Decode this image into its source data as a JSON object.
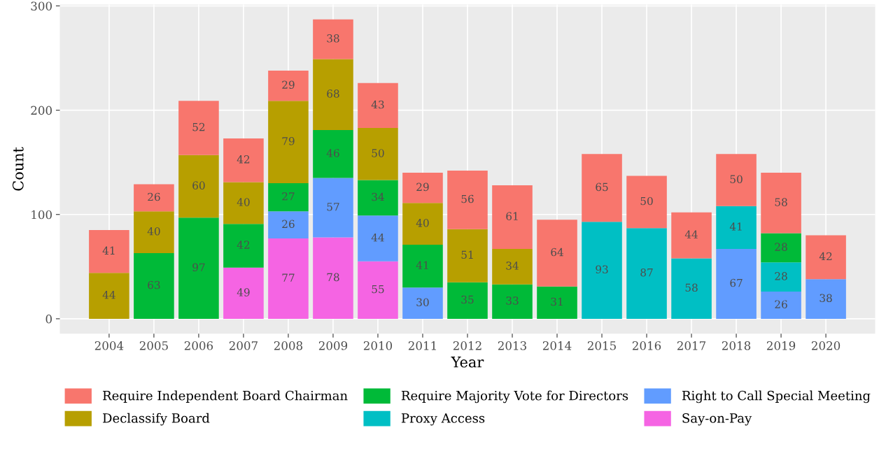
{
  "chart_data": {
    "type": "bar",
    "stacked": true,
    "xlabel": "Year",
    "ylabel": "Count",
    "categories": [
      "2004",
      "2005",
      "2006",
      "2007",
      "2008",
      "2009",
      "2010",
      "2011",
      "2012",
      "2013",
      "2014",
      "2015",
      "2016",
      "2017",
      "2018",
      "2019",
      "2020"
    ],
    "series": [
      {
        "name": "Say-on-Pay",
        "color": "#f564e3",
        "values": [
          null,
          null,
          null,
          49,
          77,
          78,
          55,
          null,
          null,
          null,
          null,
          null,
          null,
          null,
          null,
          null,
          null
        ]
      },
      {
        "name": "Right to Call Special Meeting",
        "color": "#619cff",
        "values": [
          null,
          null,
          null,
          null,
          26,
          57,
          44,
          30,
          null,
          null,
          null,
          null,
          null,
          null,
          67,
          26,
          38
        ]
      },
      {
        "name": "Proxy Access",
        "color": "#00bfc4",
        "values": [
          null,
          null,
          null,
          null,
          null,
          null,
          null,
          null,
          null,
          null,
          null,
          93,
          87,
          58,
          41,
          28,
          null
        ]
      },
      {
        "name": "Require Majority Vote for Directors",
        "color": "#00ba38",
        "values": [
          null,
          63,
          97,
          42,
          27,
          46,
          34,
          41,
          35,
          33,
          31,
          null,
          null,
          null,
          null,
          28,
          null
        ]
      },
      {
        "name": "Declassify Board",
        "color": "#b79f00",
        "values": [
          44,
          40,
          60,
          40,
          79,
          68,
          50,
          40,
          51,
          34,
          null,
          null,
          null,
          null,
          null,
          null,
          null
        ]
      },
      {
        "name": "Require Independent Board Chairman",
        "color": "#f8766d",
        "values": [
          41,
          26,
          52,
          42,
          29,
          38,
          43,
          29,
          56,
          61,
          64,
          65,
          50,
          44,
          50,
          58,
          42
        ]
      }
    ],
    "ylim": [
      -14.35,
      301.35
    ],
    "yticks": [
      0,
      100,
      200,
      300
    ],
    "grid": true,
    "legend": "bottom",
    "data_labels": true
  }
}
